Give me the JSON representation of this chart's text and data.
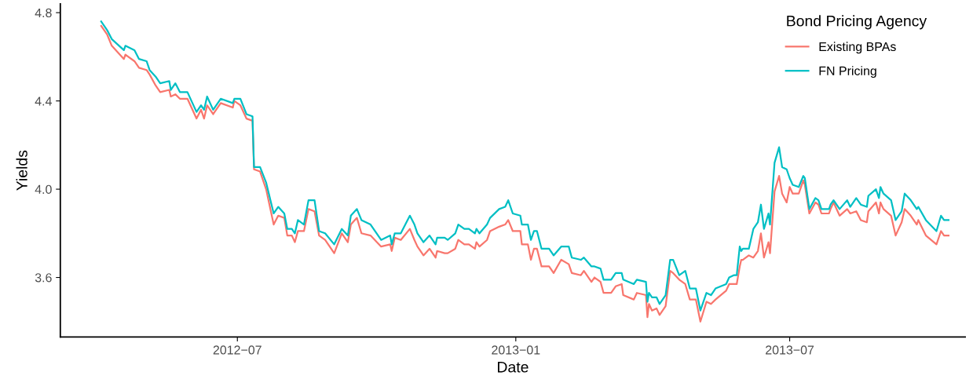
{
  "chart_data": {
    "type": "line",
    "xlabel": "Date",
    "ylabel": "Yields",
    "legend_title": "Bond Pricing Agency",
    "legend": "top right",
    "grid": false,
    "marker": "none",
    "line_style": "solid",
    "xlim": [
      "2012-03-06",
      "2013-10-25"
    ],
    "ylim": [
      3.33,
      4.84
    ],
    "xticks": [
      {
        "value": "2012-07-01",
        "label": "2012−07"
      },
      {
        "value": "2013-01-01",
        "label": "2013−01"
      },
      {
        "value": "2013-07-01",
        "label": "2013−07"
      }
    ],
    "yticks": [
      3.6,
      {
        "value": 4.0,
        "label": "4.0"
      },
      4.4,
      4.8
    ],
    "x": [
      "2012-04-02",
      "2012-04-06",
      "2012-04-09",
      "2012-04-17",
      "2012-04-18",
      "2012-04-24",
      "2012-04-27",
      "2012-05-02",
      "2012-05-04",
      "2012-05-08",
      "2012-05-11",
      "2012-05-17",
      "2012-05-18",
      "2012-05-21",
      "2012-05-24",
      "2012-05-29",
      "2012-06-04",
      "2012-06-07",
      "2012-06-09",
      "2012-06-11",
      "2012-06-15",
      "2012-06-20",
      "2012-06-28",
      "2012-06-29",
      "2012-07-03",
      "2012-07-07",
      "2012-07-11",
      "2012-07-12",
      "2012-07-16",
      "2012-07-20",
      "2012-07-25",
      "2012-07-28",
      "2012-08-01",
      "2012-08-03",
      "2012-08-06",
      "2012-08-08",
      "2012-08-10",
      "2012-08-14",
      "2012-08-17",
      "2012-08-21",
      "2012-08-24",
      "2012-08-28",
      "2012-09-03",
      "2012-09-08",
      "2012-09-12",
      "2012-09-14",
      "2012-09-18",
      "2012-09-21",
      "2012-09-27",
      "2012-10-04",
      "2012-10-10",
      "2012-10-11",
      "2012-10-13",
      "2012-10-17",
      "2012-10-23",
      "2012-10-26",
      "2012-10-28",
      "2012-11-01",
      "2012-11-05",
      "2012-11-09",
      "2012-11-10",
      "2012-11-15",
      "2012-11-17",
      "2012-11-22",
      "2012-11-24",
      "2012-11-28",
      "2012-12-01",
      "2012-12-05",
      "2012-12-06",
      "2012-12-08",
      "2012-12-13",
      "2012-12-15",
      "2012-12-21",
      "2012-12-25",
      "2012-12-27",
      "2012-12-30",
      "2013-01-04",
      "2013-01-05",
      "2013-01-09",
      "2013-01-11",
      "2013-01-13",
      "2013-01-15",
      "2013-01-18",
      "2013-01-23",
      "2013-01-26",
      "2013-01-31",
      "2013-02-05",
      "2013-02-07",
      "2013-02-13",
      "2013-02-15",
      "2013-02-20",
      "2013-02-22",
      "2013-02-26",
      "2013-02-28",
      "2013-03-05",
      "2013-03-08",
      "2013-03-12",
      "2013-03-13",
      "2013-03-20",
      "2013-03-22",
      "2013-03-28",
      "2013-03-29",
      "2013-03-30",
      "2013-04-01",
      "2013-04-04",
      "2013-04-06",
      "2013-04-10",
      "2013-04-13",
      "2013-04-15",
      "2013-04-19",
      "2013-04-23",
      "2013-04-26",
      "2013-04-30",
      "2013-05-03",
      "2013-05-07",
      "2013-05-10",
      "2013-05-13",
      "2013-05-20",
      "2013-05-22",
      "2013-05-25",
      "2013-05-27",
      "2013-05-29",
      "2013-05-30",
      "2013-05-31",
      "2013-06-04",
      "2013-06-07",
      "2013-06-10",
      "2013-06-12",
      "2013-06-14",
      "2013-06-17",
      "2013-06-18",
      "2013-06-21",
      "2013-06-24",
      "2013-06-26",
      "2013-06-29",
      "2013-07-01",
      "2013-07-03",
      "2013-07-07",
      "2013-07-10",
      "2013-07-11",
      "2013-07-14",
      "2013-07-18",
      "2013-07-20",
      "2013-07-22",
      "2013-07-27",
      "2013-07-28",
      "2013-07-30",
      "2013-08-03",
      "2013-08-08",
      "2013-08-10",
      "2013-08-14",
      "2013-08-17",
      "2013-08-21",
      "2013-08-22",
      "2013-08-27",
      "2013-08-29",
      "2013-08-30",
      "2013-09-01",
      "2013-09-06",
      "2013-09-09",
      "2013-09-13",
      "2013-09-15",
      "2013-09-19",
      "2013-09-23",
      "2013-09-24",
      "2013-09-29",
      "2013-10-06",
      "2013-10-09",
      "2013-10-11",
      "2013-10-14"
    ],
    "series": [
      {
        "name": "Existing BPAs",
        "color": "#f8766d",
        "values": [
          4.74,
          4.7,
          4.65,
          4.59,
          4.61,
          4.58,
          4.55,
          4.54,
          4.52,
          4.47,
          4.44,
          4.45,
          4.42,
          4.43,
          4.41,
          4.41,
          4.32,
          4.36,
          4.32,
          4.38,
          4.34,
          4.39,
          4.37,
          4.4,
          4.38,
          4.32,
          4.31,
          4.09,
          4.08,
          4.0,
          3.84,
          3.88,
          3.87,
          3.79,
          3.79,
          3.76,
          3.81,
          3.81,
          3.91,
          3.9,
          3.79,
          3.77,
          3.71,
          3.8,
          3.76,
          3.84,
          3.87,
          3.8,
          3.79,
          3.74,
          3.75,
          3.72,
          3.78,
          3.77,
          3.82,
          3.77,
          3.74,
          3.7,
          3.73,
          3.69,
          3.72,
          3.71,
          3.71,
          3.73,
          3.77,
          3.75,
          3.75,
          3.73,
          3.76,
          3.74,
          3.77,
          3.81,
          3.83,
          3.84,
          3.86,
          3.81,
          3.81,
          3.75,
          3.75,
          3.68,
          3.73,
          3.73,
          3.65,
          3.65,
          3.62,
          3.68,
          3.66,
          3.62,
          3.61,
          3.63,
          3.58,
          3.6,
          3.58,
          3.53,
          3.53,
          3.56,
          3.57,
          3.52,
          3.5,
          3.53,
          3.52,
          3.42,
          3.48,
          3.45,
          3.46,
          3.43,
          3.47,
          3.63,
          3.62,
          3.59,
          3.57,
          3.5,
          3.5,
          3.4,
          3.49,
          3.48,
          3.5,
          3.54,
          3.57,
          3.57,
          3.57,
          3.65,
          3.68,
          3.68,
          3.7,
          3.69,
          3.72,
          3.8,
          3.69,
          3.76,
          3.71,
          3.99,
          4.06,
          3.98,
          3.94,
          4.01,
          3.98,
          3.98,
          4.04,
          4.02,
          3.89,
          3.94,
          3.93,
          3.89,
          3.89,
          3.91,
          3.94,
          3.88,
          3.91,
          3.89,
          3.9,
          3.86,
          3.85,
          3.9,
          3.94,
          3.89,
          3.94,
          3.91,
          3.88,
          3.79,
          3.85,
          3.91,
          3.88,
          3.84,
          3.86,
          3.79,
          3.75,
          3.81,
          3.79,
          3.79
        ]
      },
      {
        "name": "FN Pricing",
        "color": "#00bfc4",
        "values": [
          4.76,
          4.72,
          4.68,
          4.63,
          4.65,
          4.63,
          4.59,
          4.58,
          4.54,
          4.51,
          4.48,
          4.49,
          4.45,
          4.48,
          4.44,
          4.44,
          4.35,
          4.38,
          4.36,
          4.42,
          4.36,
          4.41,
          4.39,
          4.41,
          4.41,
          4.34,
          4.33,
          4.1,
          4.1,
          4.03,
          3.89,
          3.92,
          3.89,
          3.82,
          3.82,
          3.8,
          3.86,
          3.84,
          3.95,
          3.95,
          3.81,
          3.8,
          3.75,
          3.82,
          3.79,
          3.88,
          3.91,
          3.86,
          3.84,
          3.77,
          3.79,
          3.75,
          3.8,
          3.8,
          3.88,
          3.84,
          3.8,
          3.76,
          3.79,
          3.75,
          3.78,
          3.78,
          3.77,
          3.8,
          3.84,
          3.82,
          3.82,
          3.8,
          3.82,
          3.8,
          3.84,
          3.87,
          3.91,
          3.92,
          3.95,
          3.89,
          3.88,
          3.84,
          3.84,
          3.77,
          3.81,
          3.81,
          3.73,
          3.73,
          3.7,
          3.74,
          3.74,
          3.69,
          3.68,
          3.69,
          3.65,
          3.65,
          3.64,
          3.59,
          3.59,
          3.62,
          3.62,
          3.59,
          3.57,
          3.59,
          3.58,
          3.49,
          3.53,
          3.51,
          3.51,
          3.48,
          3.52,
          3.68,
          3.68,
          3.61,
          3.63,
          3.55,
          3.55,
          3.45,
          3.53,
          3.52,
          3.55,
          3.57,
          3.6,
          3.61,
          3.61,
          3.74,
          3.72,
          3.73,
          3.73,
          3.82,
          3.85,
          3.93,
          3.82,
          3.89,
          3.84,
          4.12,
          4.19,
          4.1,
          4.09,
          4.05,
          4.02,
          4.01,
          4.06,
          4.05,
          3.91,
          3.96,
          3.95,
          3.91,
          3.91,
          3.93,
          3.95,
          3.91,
          3.95,
          3.92,
          3.96,
          3.93,
          3.92,
          3.97,
          4.0,
          3.96,
          4.01,
          3.98,
          3.95,
          3.86,
          3.9,
          3.98,
          3.95,
          3.91,
          3.92,
          3.86,
          3.81,
          3.88,
          3.86,
          3.86
        ]
      }
    ]
  }
}
